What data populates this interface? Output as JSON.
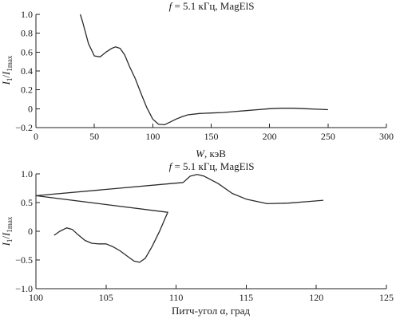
{
  "chart_data": [
    {
      "type": "line",
      "title": "f = 5.1 кГц, MagElS",
      "title_prefix": "f",
      "title_rest": " = 5.1 кГц, MagElS",
      "xlabel": "W, кэВ",
      "xlabel_symbol": "W",
      "xlabel_rest": ", кэВ",
      "ylabel": "I1/I1max",
      "xlim": [
        0,
        300
      ],
      "ylim": [
        -0.2,
        1.0
      ],
      "xticks": [
        0,
        50,
        100,
        150,
        200,
        250,
        300
      ],
      "xtick_labels": [
        "0",
        "50",
        "100",
        "150",
        "200",
        "250",
        "300"
      ],
      "yticks": [
        -0.2,
        0,
        0.2,
        0.4,
        0.6,
        0.8,
        1.0
      ],
      "ytick_labels": [
        "−0.2",
        "0",
        "0.2",
        "0.4",
        "0.6",
        "0.8",
        "1.0"
      ],
      "grid": false,
      "series": [
        {
          "x": [
            38,
            40,
            45,
            50,
            55,
            60,
            65,
            68,
            72,
            76,
            80,
            85,
            90,
            95,
            100,
            105,
            110,
            115,
            120,
            125,
            130,
            140,
            150,
            160,
            170,
            180,
            190,
            200,
            210,
            220,
            230,
            240,
            250
          ],
          "y": [
            1.0,
            0.92,
            0.69,
            0.56,
            0.55,
            0.6,
            0.64,
            0.655,
            0.64,
            0.57,
            0.45,
            0.32,
            0.16,
            0.01,
            -0.11,
            -0.165,
            -0.17,
            -0.14,
            -0.11,
            -0.085,
            -0.065,
            -0.05,
            -0.045,
            -0.04,
            -0.03,
            -0.02,
            -0.01,
            0.0,
            0.005,
            0.005,
            0.0,
            -0.005,
            -0.01
          ]
        }
      ]
    },
    {
      "type": "line",
      "title": "f = 5.1 кГц, MagElS",
      "title_prefix": "f",
      "title_rest": " = 5.1 кГц, MagElS",
      "xlabel": "Питч-угол α, град",
      "ylabel": "I1/I1max",
      "xlim": [
        100,
        125
      ],
      "ylim": [
        -1.0,
        1.0
      ],
      "xticks": [
        100,
        105,
        110,
        115,
        120,
        125
      ],
      "xtick_labels": [
        "100",
        "105",
        "110",
        "115",
        "120",
        "125"
      ],
      "yticks": [
        -1.0,
        -0.5,
        0,
        0.5,
        1.0
      ],
      "ytick_labels": [
        "−1.0",
        "−0.5",
        "0",
        "0.5",
        "1.0"
      ],
      "grid": false,
      "series": [
        {
          "x": [
            101.3,
            101.7,
            102.2,
            102.6,
            103.0,
            103.5,
            104.0,
            104.5,
            105.0,
            105.5,
            106.0,
            106.5,
            107.0,
            107.4,
            107.8,
            108.3,
            108.8,
            109.4,
            100.0,
            110.5,
            111.0,
            111.5,
            112.0,
            113.0,
            114.0,
            115.0,
            116.5,
            118.0,
            119.5,
            120.5
          ],
          "y": [
            -0.07,
            0.0,
            0.06,
            0.03,
            -0.06,
            -0.16,
            -0.21,
            -0.22,
            -0.22,
            -0.27,
            -0.34,
            -0.43,
            -0.52,
            -0.54,
            -0.47,
            -0.26,
            -0.01,
            0.33,
            0.62,
            0.85,
            0.96,
            0.99,
            0.96,
            0.83,
            0.66,
            0.56,
            0.48,
            0.49,
            0.52,
            0.54
          ]
        }
      ]
    }
  ]
}
